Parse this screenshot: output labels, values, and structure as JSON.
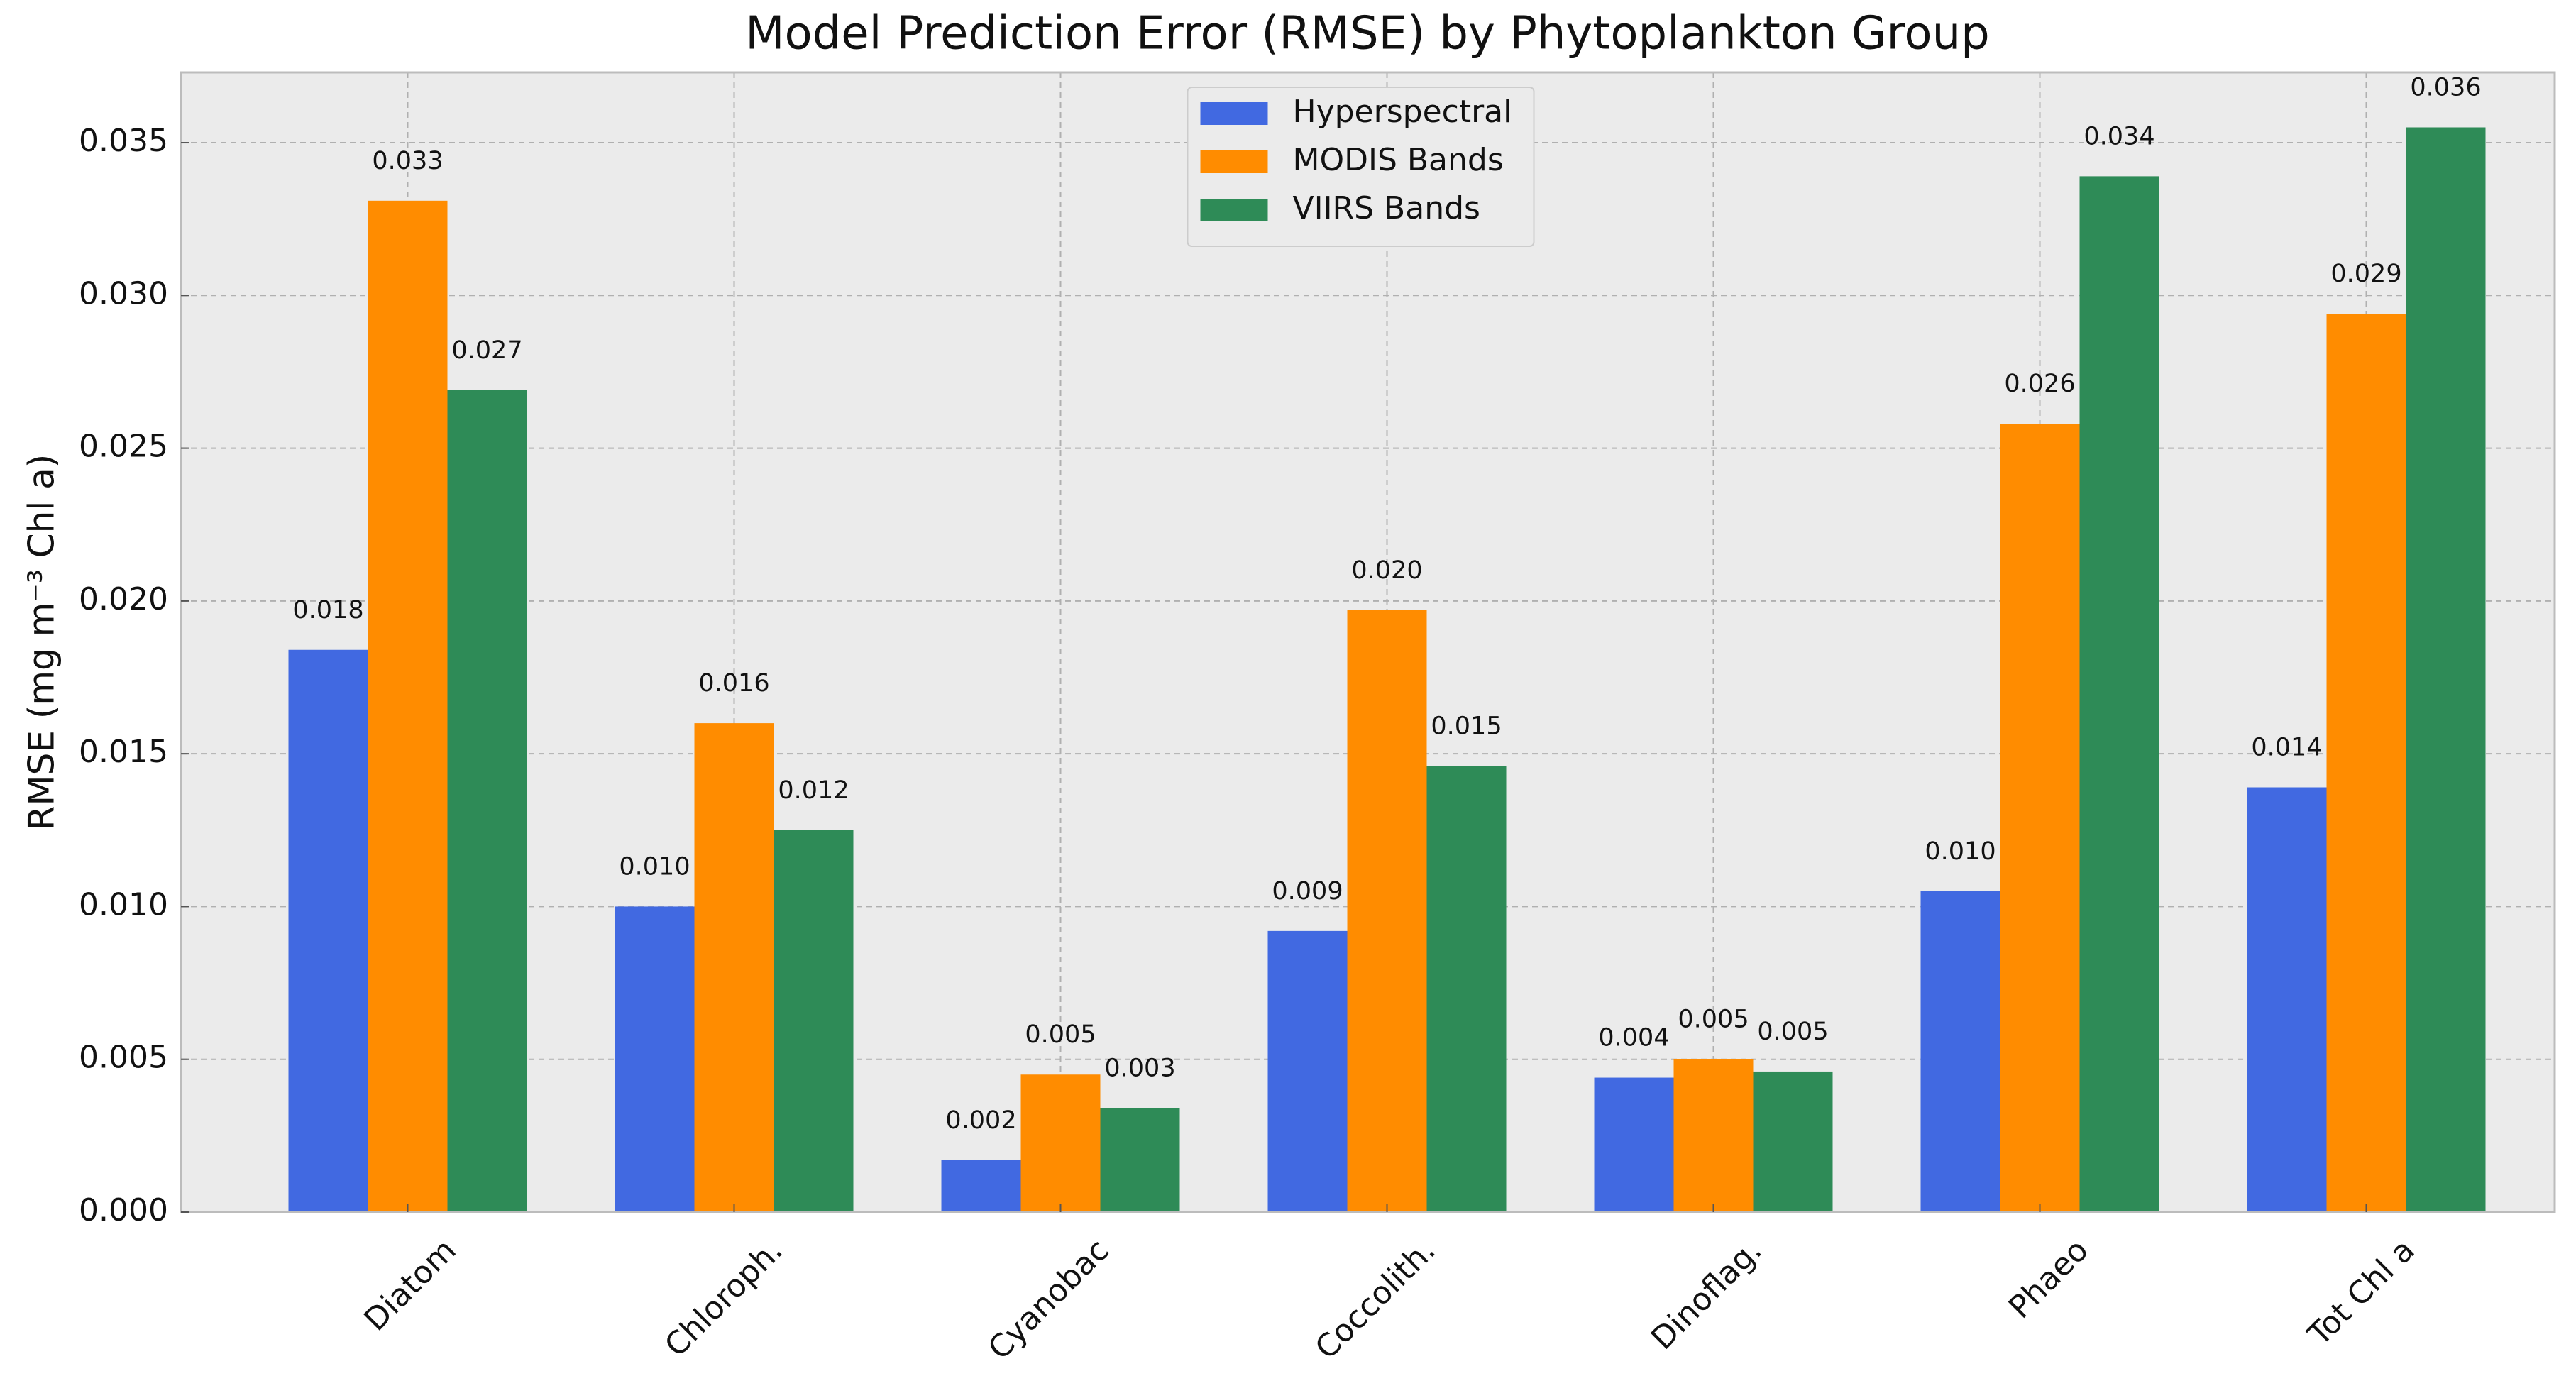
{
  "chart_data": {
    "type": "bar",
    "title": "Model Prediction Error (RMSE) by Phytoplankton Group",
    "y_label": "RMSE (mg m⁻³ Chl a)",
    "categories": [
      "Diatom",
      "Chloroph.",
      "Cyanobac",
      "Coccolith.",
      "Dinoflag.",
      "Phaeo",
      "Tot Chl a"
    ],
    "series": [
      {
        "name": "Hyperspectral",
        "color": "#4169e1",
        "values": [
          0.0184,
          0.01,
          0.0017,
          0.0092,
          0.0044,
          0.0105,
          0.0139
        ],
        "value_labels": [
          "0.018",
          "0.010",
          "0.002",
          "0.009",
          "0.004",
          "0.010",
          "0.014"
        ]
      },
      {
        "name": "MODIS Bands",
        "color": "#ff8c00",
        "values": [
          0.0331,
          0.016,
          0.0045,
          0.0197,
          0.005,
          0.0258,
          0.0294
        ],
        "value_labels": [
          "0.033",
          "0.016",
          "0.005",
          "0.020",
          "0.005",
          "0.026",
          "0.029"
        ]
      },
      {
        "name": "VIIRS Bands",
        "color": "#2e8b57",
        "values": [
          0.0269,
          0.0125,
          0.0034,
          0.0146,
          0.0046,
          0.0339,
          0.0355
        ],
        "value_labels": [
          "0.027",
          "0.012",
          "0.003",
          "0.015",
          "0.005",
          "0.034",
          "0.036"
        ]
      }
    ],
    "ylim": [
      0,
      0.0373
    ],
    "yticks": [
      {
        "value": 0,
        "label": "0.000"
      },
      {
        "value": 0.005,
        "label": "0.005"
      },
      {
        "value": 0.01,
        "label": "0.010"
      },
      {
        "value": 0.015,
        "label": "0.015"
      },
      {
        "value": 0.02,
        "label": "0.020"
      },
      {
        "value": 0.025,
        "label": "0.025"
      },
      {
        "value": 0.03,
        "label": "0.030"
      },
      {
        "value": 0.035,
        "label": "0.035"
      }
    ],
    "grid": true,
    "legend": "upper center"
  }
}
